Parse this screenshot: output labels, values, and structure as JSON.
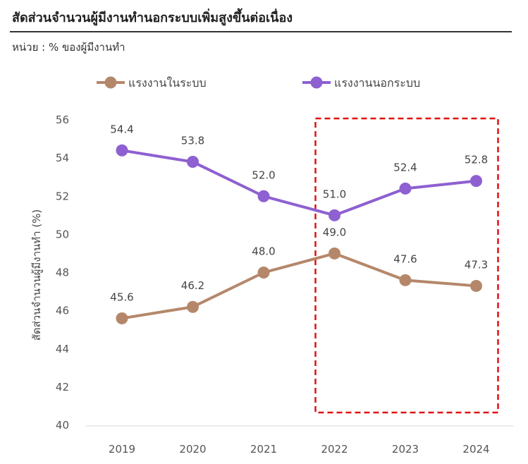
{
  "header": {
    "title": "สัดส่วนจำนวนผู้มีงานทำนอกระบบเพิ่มสูงขึ้นต่อเนื่อง",
    "unit": "หน่วย : % ของผู้มีงานทำ"
  },
  "chart_data": {
    "type": "line",
    "x": [
      "2019",
      "2020",
      "2021",
      "2022",
      "2023",
      "2024"
    ],
    "series": [
      {
        "name": "แรงงานในระบบ",
        "color": "#b5876a",
        "values": [
          45.6,
          46.2,
          48.0,
          49.0,
          47.6,
          47.3
        ]
      },
      {
        "name": "แรงงานนอกระบบ",
        "color": "#8e60d1",
        "values": [
          54.4,
          53.8,
          52.0,
          51.0,
          52.4,
          52.8
        ]
      }
    ],
    "ylabel": "สัดส่วนจำนวนผู้มีงานทำ (%)",
    "ylim": [
      40,
      56
    ],
    "yticks": [
      40,
      42,
      44,
      46,
      48,
      50,
      52,
      54,
      56
    ],
    "grid": false,
    "legend_position": "top",
    "highlight": {
      "x_from": "2022",
      "x_to": "2024",
      "style": "dashed",
      "color": "#e01010"
    }
  }
}
